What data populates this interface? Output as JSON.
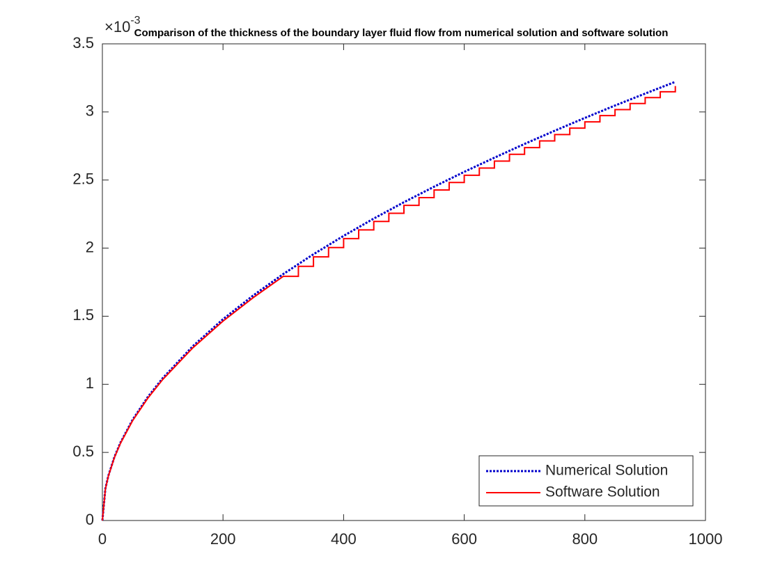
{
  "chart_data": {
    "type": "line",
    "title": "Comparison of the thickness of the boundary layer fluid flow from numerical solution and software solution",
    "y_multiplier": {
      "base": "×10",
      "exponent": "-3"
    },
    "xlim": [
      0,
      1000
    ],
    "xticks": [
      0,
      200,
      400,
      600,
      800,
      1000
    ],
    "ylim": [
      0,
      3.5
    ],
    "yticks": [
      0,
      0.5,
      1,
      1.5,
      2,
      2.5,
      3,
      3.5
    ],
    "grid": false,
    "legend": "lower right",
    "series": [
      {
        "name": "Numerical Solution",
        "color": "#0000cc",
        "line_style": "dotted",
        "x": [
          0,
          5,
          10,
          20,
          30,
          50,
          75,
          100,
          150,
          200,
          250,
          300,
          350,
          400,
          450,
          500,
          550,
          600,
          650,
          700,
          750,
          800,
          850,
          900,
          950
        ],
        "values": [
          0,
          0.234,
          0.33,
          0.467,
          0.572,
          0.739,
          0.905,
          1.045,
          1.28,
          1.478,
          1.652,
          1.81,
          1.955,
          2.09,
          2.217,
          2.337,
          2.451,
          2.56,
          2.664,
          2.765,
          2.862,
          2.956,
          3.047,
          3.135,
          3.221
        ]
      },
      {
        "name": "Software Solution",
        "color": "#ff0000",
        "line_style": "solid",
        "x": [
          0,
          5,
          10,
          20,
          30,
          50,
          75,
          100,
          150,
          200,
          250,
          300,
          325,
          325,
          350,
          350,
          375,
          375,
          400,
          400,
          425,
          425,
          450,
          450,
          475,
          475,
          500,
          500,
          525,
          525,
          550,
          550,
          575,
          575,
          600,
          600,
          625,
          625,
          650,
          650,
          675,
          675,
          700,
          700,
          725,
          725,
          750,
          750,
          775,
          775,
          800,
          800,
          825,
          825,
          850,
          850,
          875,
          875,
          900,
          900,
          925,
          925,
          950,
          950
        ],
        "values": [
          0,
          0.231,
          0.327,
          0.463,
          0.567,
          0.732,
          0.896,
          1.035,
          1.268,
          1.464,
          1.636,
          1.793,
          1.793,
          1.866,
          1.866,
          1.936,
          1.936,
          2.004,
          2.004,
          2.07,
          2.07,
          2.134,
          2.134,
          2.196,
          2.196,
          2.256,
          2.256,
          2.314,
          2.314,
          2.371,
          2.371,
          2.427,
          2.427,
          2.482,
          2.482,
          2.535,
          2.535,
          2.588,
          2.588,
          2.639,
          2.639,
          2.689,
          2.689,
          2.738,
          2.738,
          2.787,
          2.787,
          2.834,
          2.834,
          2.881,
          2.881,
          2.927,
          2.927,
          2.973,
          2.973,
          3.017,
          3.017,
          3.062,
          3.062,
          3.105,
          3.105,
          3.148,
          3.148,
          3.19
        ]
      }
    ]
  }
}
